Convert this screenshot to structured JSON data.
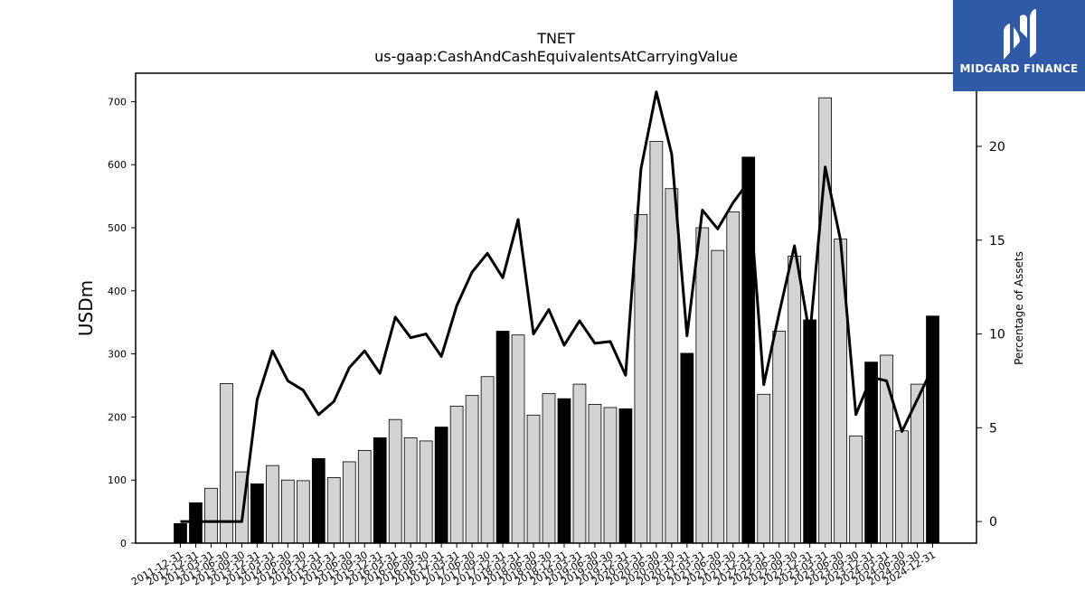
{
  "chart_data": {
    "type": "bar",
    "title": "TNET",
    "subtitle": "us-gaap:CashAndCashEquivalentsAtCarryingValue",
    "ylabel": "USDm",
    "y2label": "Percentage of Assets",
    "ylim": [
      0,
      745
    ],
    "y2lim": [
      -1.15,
      23.9
    ],
    "yticks": [
      0,
      100,
      200,
      300,
      400,
      500,
      600,
      700
    ],
    "y2ticks": [
      0,
      5,
      10,
      15,
      20
    ],
    "categories": [
      "2011-12-31",
      "2012-12-31",
      "2013-03-31",
      "2013-06-30",
      "2013-09-30",
      "2013-12-31",
      "2014-03-31",
      "2014-06-30",
      "2014-09-30",
      "2014-12-31",
      "2015-03-31",
      "2015-06-30",
      "2015-09-30",
      "2015-12-31",
      "2016-03-31",
      "2016-06-30",
      "2016-09-30",
      "2016-12-31",
      "2017-03-31",
      "2017-06-30",
      "2017-09-30",
      "2017-12-31",
      "2018-03-31",
      "2018-06-30",
      "2018-09-30",
      "2018-12-31",
      "2019-03-31",
      "2019-06-30",
      "2019-09-30",
      "2019-12-31",
      "2020-03-31",
      "2020-06-30",
      "2020-09-30",
      "2020-12-31",
      "2021-03-31",
      "2021-06-30",
      "2021-09-30",
      "2021-12-31",
      "2022-03-31",
      "2022-06-30",
      "2022-09-30",
      "2022-12-31",
      "2023-03-31",
      "2023-06-30",
      "2023-09-30",
      "2023-12-31",
      "2024-03-31",
      "2024-06-30",
      "2024-09-30",
      "2024-12-31"
    ],
    "series": [
      {
        "values": [
          31,
          64,
          87,
          253,
          113,
          94,
          123,
          100,
          99,
          134,
          104,
          129,
          147,
          167,
          196,
          167,
          162,
          184,
          217,
          234,
          264,
          336,
          330,
          203,
          237,
          229,
          252,
          220,
          215,
          213,
          521,
          637,
          562,
          301,
          500,
          464,
          525,
          612,
          236,
          336,
          455,
          354,
          706,
          482,
          170,
          287,
          298,
          178,
          252,
          360
        ],
        "year_end": [
          true,
          true,
          false,
          false,
          false,
          true,
          false,
          false,
          false,
          true,
          false,
          false,
          false,
          true,
          false,
          false,
          false,
          true,
          false,
          false,
          false,
          true,
          false,
          false,
          false,
          true,
          false,
          false,
          false,
          true,
          false,
          false,
          false,
          true,
          false,
          false,
          false,
          true,
          false,
          false,
          false,
          true,
          false,
          false,
          false,
          true,
          false,
          false,
          false,
          true
        ]
      },
      {
        "values": [
          0.0,
          0.0,
          0.0,
          0.0,
          0.0,
          6.5,
          9.1,
          7.5,
          7.0,
          5.7,
          6.4,
          8.2,
          9.1,
          7.9,
          10.9,
          9.8,
          10.0,
          8.8,
          11.5,
          13.3,
          14.3,
          13.0,
          16.1,
          10.0,
          11.3,
          9.4,
          10.7,
          9.5,
          9.6,
          7.8,
          18.8,
          22.9,
          19.6,
          9.9,
          16.6,
          15.6,
          17.0,
          18.1,
          7.3,
          11.1,
          14.7,
          9.9,
          18.9,
          15.0,
          5.7,
          7.7,
          7.5,
          4.8,
          6.5,
          8.2
        ]
      }
    ],
    "grid": false,
    "colors": {
      "year_end_bar": "#000000",
      "quarter_bar": "#d3d3d3",
      "bar_edge": "#000000",
      "line": "#000000"
    }
  },
  "logo": {
    "text": "MIDGARD FINANCE",
    "color": "#2f5aa8"
  }
}
